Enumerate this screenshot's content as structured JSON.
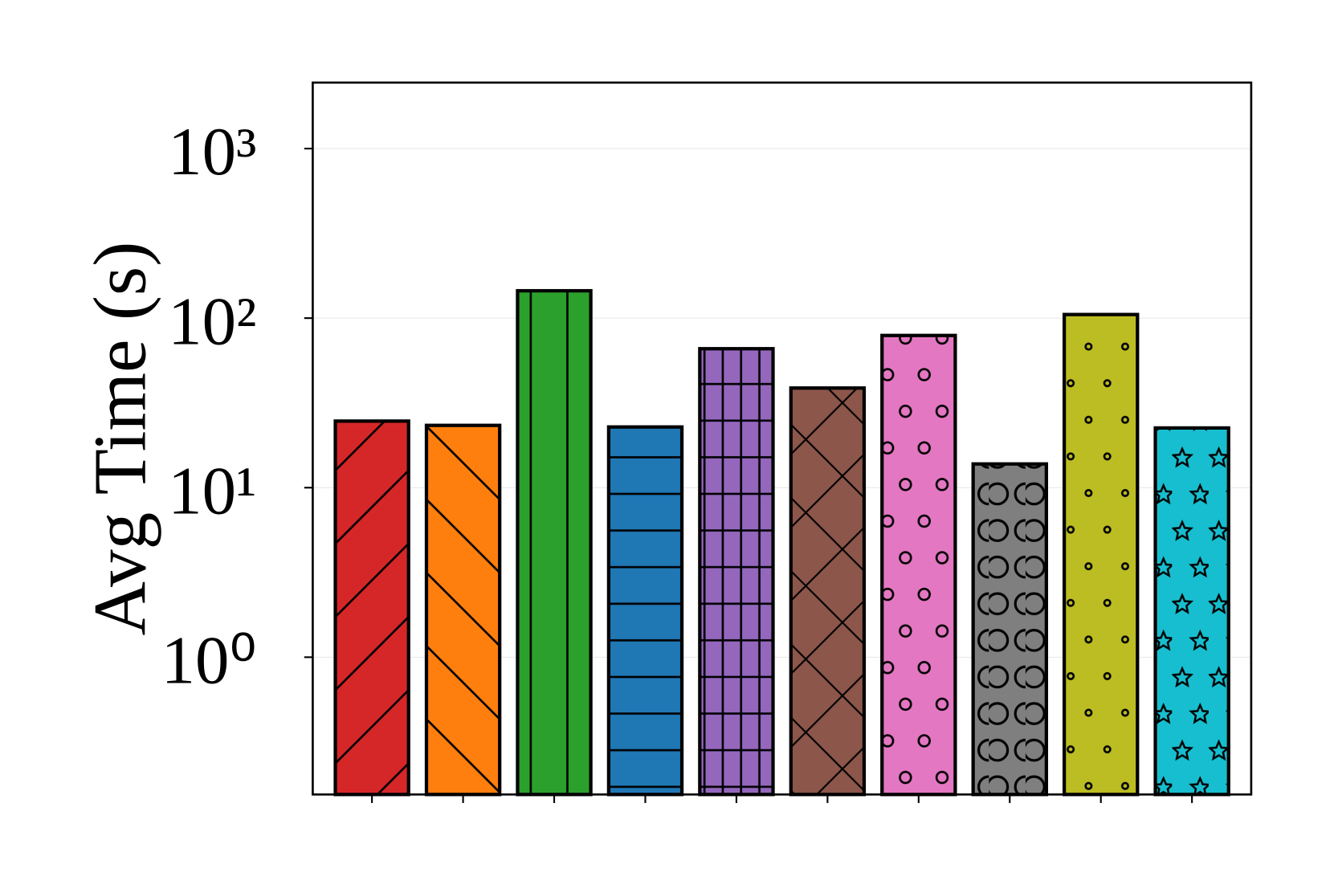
{
  "chart_data": {
    "type": "bar",
    "y_label": "Avg Time (s)",
    "categories": [
      null,
      null,
      null,
      null,
      null,
      null,
      null,
      null,
      null,
      null
    ],
    "values": [
      24.7,
      23.3,
      145,
      22.8,
      66,
      38.7,
      79,
      13.8,
      105,
      22.5
    ],
    "colors": [
      "#d62728",
      "#ff7f0e",
      "#2ca02c",
      "#1f77b4",
      "#9467bd",
      "#8c564b",
      "#e377c2",
      "#7f7f7f",
      "#bcbd22",
      "#17becf"
    ],
    "log_scale": true,
    "ylim": [
      0.155,
      2450
    ],
    "yticks": [
      {
        "value": 1,
        "label": "10⁰"
      },
      {
        "value": 10,
        "label": "10¹"
      },
      {
        "value": 100,
        "label": "10²"
      },
      {
        "value": 1000,
        "label": "10³"
      }
    ],
    "grid": true
  }
}
